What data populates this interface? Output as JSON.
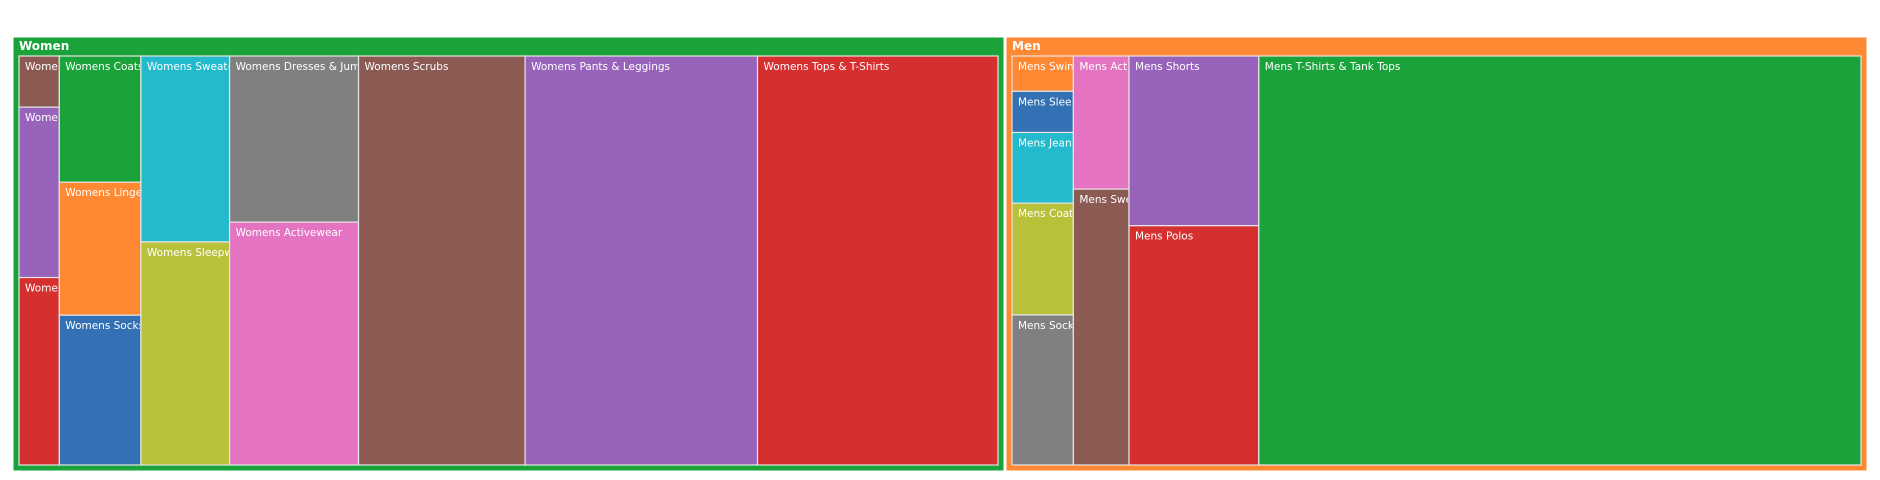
{
  "chart_data": {
    "type": "treemap",
    "groups": [
      {
        "name": "Women",
        "color": "#1aa33a",
        "children": [
          {
            "name": "Womens Tops & T-Shirts",
            "value": 3580,
            "color": "#d62f2f"
          },
          {
            "name": "Womens Pants & Leggings",
            "value": 3460,
            "color": "#9763bb"
          },
          {
            "name": "Womens Scrubs",
            "value": 2480,
            "color": "#8b5a52"
          },
          {
            "name": "Womens Dresses & Jumpsuits",
            "value": 780,
            "color": "#808080"
          },
          {
            "name": "Womens Activewear",
            "value": 1140,
            "color": "#e473c2"
          },
          {
            "name": "Womens Sweaters",
            "value": 600,
            "color": "#24bacd"
          },
          {
            "name": "Womens Sleepwear",
            "value": 720,
            "color": "#b9c03a"
          },
          {
            "name": "Womens Coats & Jackets",
            "value": 375,
            "color": "#1aa33a"
          },
          {
            "name": "Womens Lingerie",
            "value": 395,
            "color": "#ff8832"
          },
          {
            "name": "Womens Socks, Hosiery",
            "value": 445,
            "color": "#3370b4"
          },
          {
            "name": "Womens Swimwear",
            "value": 75,
            "color": "#8b5a52"
          },
          {
            "name": "Womens Jeans",
            "value": 250,
            "color": "#9763bb"
          },
          {
            "name": "Womens Shorts",
            "value": 275,
            "color": "#d62f2f"
          }
        ]
      },
      {
        "name": "Men",
        "color": "#ff8832",
        "children": [
          {
            "name": "Mens T-Shirts & Tank Tops",
            "value": 6820,
            "color": "#1aa33a"
          },
          {
            "name": "Mens Shorts",
            "value": 610,
            "color": "#9763bb"
          },
          {
            "name": "Mens Polos",
            "value": 860,
            "color": "#d62f2f"
          },
          {
            "name": "Mens Activewear",
            "value": 205,
            "color": "#e473c2"
          },
          {
            "name": "Mens Sweaters",
            "value": 425,
            "color": "#8b5a52"
          },
          {
            "name": "Mens Swimwear",
            "value": 60,
            "color": "#ff8832"
          },
          {
            "name": "Mens Sleepwear",
            "value": 70,
            "color": "#3370b4"
          },
          {
            "name": "Mens Jeans",
            "value": 120,
            "color": "#24bacd"
          },
          {
            "name": "Mens Coats & Jackets",
            "value": 190,
            "color": "#b9c03a"
          },
          {
            "name": "Mens Socks",
            "value": 255,
            "color": "#808080"
          }
        ]
      }
    ]
  }
}
